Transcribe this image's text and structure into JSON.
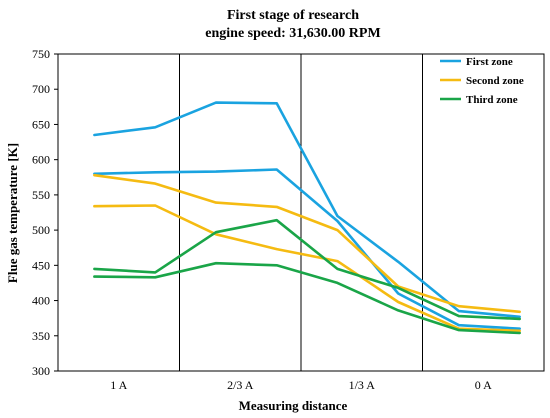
{
  "chart_data": {
    "type": "line",
    "title": "First stage of research",
    "subtitle": "engine speed: 31,630.00 RPM",
    "xlabel": "Measuring distance",
    "ylabel": "Flue gas temperature [K]",
    "ylim": [
      300,
      750
    ],
    "yticks": [
      300,
      350,
      400,
      450,
      500,
      550,
      600,
      650,
      700,
      750
    ],
    "categories": [
      "1 A",
      "2/3 A",
      "1/3 A",
      "0 A"
    ],
    "x_range": [
      0,
      4
    ],
    "legend_position": "top-right",
    "grid": "vertical category separators",
    "series": [
      {
        "name": "First zone",
        "color": "#1aa3e0",
        "x": [
          0.3,
          0.8,
          1.3,
          1.8,
          2.3,
          2.8,
          3.3,
          3.8
        ],
        "values": [
          635,
          646,
          681,
          680,
          520,
          455,
          385,
          377
        ]
      },
      {
        "name": "First zone",
        "color": "#1aa3e0",
        "x": [
          0.3,
          0.8,
          1.3,
          1.8,
          2.3,
          2.8,
          3.3,
          3.8
        ],
        "values": [
          580,
          582,
          583,
          586,
          513,
          410,
          365,
          360
        ]
      },
      {
        "name": "Second zone",
        "color": "#f5bb12",
        "x": [
          0.3,
          0.8,
          1.3,
          1.8,
          2.3,
          2.8,
          3.3,
          3.8
        ],
        "values": [
          578,
          566,
          539,
          533,
          500,
          420,
          392,
          384
        ]
      },
      {
        "name": "Second zone",
        "color": "#f5bb12",
        "x": [
          0.3,
          0.8,
          1.3,
          1.8,
          2.3,
          2.8,
          3.3,
          3.8
        ],
        "values": [
          534,
          535,
          494,
          473,
          456,
          398,
          360,
          357
        ]
      },
      {
        "name": "Third zone",
        "color": "#1aa548",
        "x": [
          0.3,
          0.8,
          1.3,
          1.8,
          2.3,
          2.8,
          3.3,
          3.8
        ],
        "values": [
          445,
          440,
          497,
          514,
          445,
          418,
          378,
          374
        ]
      },
      {
        "name": "Third zone",
        "color": "#1aa548",
        "x": [
          0.3,
          0.8,
          1.3,
          1.8,
          2.3,
          2.8,
          3.3,
          3.8
        ],
        "values": [
          434,
          433,
          453,
          450,
          425,
          386,
          358,
          354
        ]
      }
    ],
    "legend": [
      {
        "label": "First zone",
        "color": "#1aa3e0"
      },
      {
        "label": "Second zone",
        "color": "#f5bb12"
      },
      {
        "label": "Third zone",
        "color": "#1aa548"
      }
    ]
  }
}
